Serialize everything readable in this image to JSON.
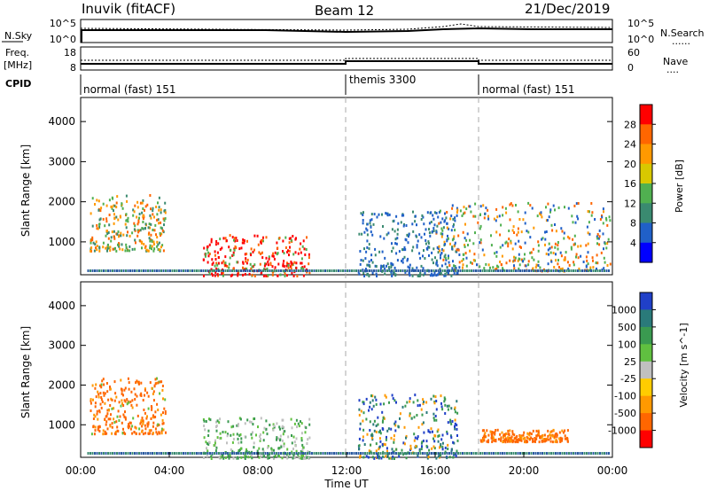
{
  "header": {
    "station": "Inuvik (fitACF)",
    "beam": "Beam 12",
    "date": "21/Dec/2019"
  },
  "nsky_panel": {
    "left_label": "N.Sky",
    "left_ticks": [
      "10^5",
      "10^0"
    ],
    "right_ticks": [
      "10^5",
      "10^0"
    ],
    "right_label": "N.Search",
    "right_legend_line": "......"
  },
  "freq_panel": {
    "left_label_line1": "Freq.",
    "left_label_line2": "[MHz]",
    "left_ticks": [
      "18",
      "8"
    ],
    "right_ticks": [
      "60",
      "0"
    ],
    "right_label": "Nave",
    "right_legend_line": "...."
  },
  "cpid_panel": {
    "label": "CPID",
    "segments": [
      {
        "label": "normal (fast) 151",
        "start_hour": 0,
        "end_hour": 12
      },
      {
        "label": "themis 3300",
        "start_hour": 12,
        "end_hour": 18
      },
      {
        "label": "normal (fast) 151",
        "start_hour": 18,
        "end_hour": 24
      }
    ]
  },
  "chart_data": [
    {
      "type": "heatmap",
      "title": "",
      "xlabel": "",
      "ylabel": "Slant Range [km]",
      "xlim": [
        0,
        24
      ],
      "ylim": [
        180,
        4600
      ],
      "y_ticks": [
        "1000",
        "2000",
        "3000",
        "4000"
      ],
      "colorbar": {
        "label": "Power [dB]",
        "tick_labels": [
          "4",
          "8",
          "12",
          "16",
          "20",
          "24",
          "28"
        ],
        "colors": [
          "#0000ff",
          "#2060c8",
          "#3a8a70",
          "#50b050",
          "#d8c800",
          "#ff9900",
          "#ff6600",
          "#ff0000"
        ]
      },
      "scatter_regions": [
        {
          "x": [
            0.4,
            3.8
          ],
          "y": [
            800,
            2200
          ],
          "value": "mixed 8-28 dB"
        },
        {
          "x": [
            5.5,
            10.3
          ],
          "y": [
            180,
            1200
          ],
          "value": "high 20-28 dB"
        },
        {
          "x": [
            12.5,
            17.0
          ],
          "y": [
            180,
            1800
          ],
          "value": "low 4-12 dB"
        },
        {
          "x": [
            16.0,
            23.9
          ],
          "y": [
            300,
            2000
          ],
          "value": "mixed 4-28 dB"
        }
      ]
    },
    {
      "type": "heatmap",
      "title": "",
      "xlabel": "Time UT",
      "ylabel": "Slant Range [km]",
      "xlim": [
        0,
        24
      ],
      "ylim": [
        180,
        4600
      ],
      "x_ticks": [
        "00:00",
        "04:00",
        "08:00",
        "12:00",
        "16:00",
        "20:00",
        "00:00"
      ],
      "y_ticks": [
        "1000",
        "2000",
        "3000",
        "4000"
      ],
      "colorbar": {
        "label": "Velocity [m s^-1]",
        "tick_labels": [
          "1000",
          "500",
          "100",
          "25",
          "-25",
          "-100",
          "-500",
          "-1000"
        ],
        "colors": [
          "#2040c8",
          "#2a7a7a",
          "#3a9a50",
          "#60c040",
          "#c0c0c0",
          "#ffcc00",
          "#ff9900",
          "#ff6600",
          "#ff0000"
        ]
      },
      "scatter_regions": [
        {
          "x": [
            0.4,
            3.8
          ],
          "y": [
            800,
            2200
          ],
          "value": "-100 to -500 m/s"
        },
        {
          "x": [
            5.5,
            10.3
          ],
          "y": [
            180,
            1200
          ],
          "value": "-25 to 100 m/s"
        },
        {
          "x": [
            12.5,
            17.0
          ],
          "y": [
            180,
            1800
          ],
          "value": "mixed"
        },
        {
          "x": [
            18.0,
            22.0
          ],
          "y": [
            600,
            900
          ],
          "value": "-100 to -500 m/s"
        }
      ]
    }
  ]
}
